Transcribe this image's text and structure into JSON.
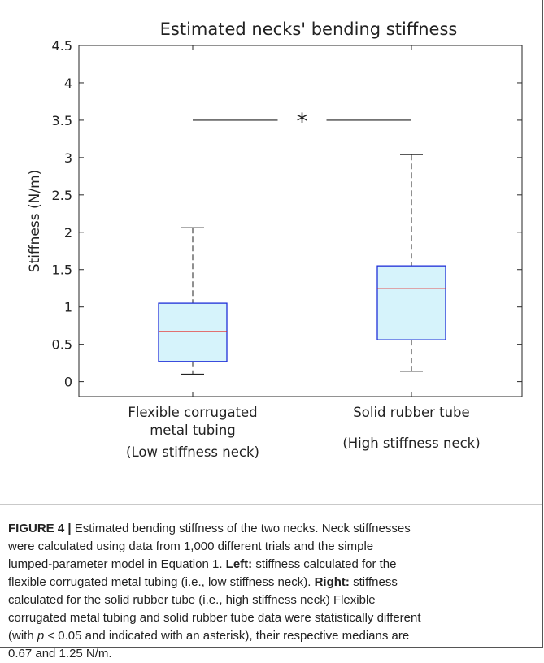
{
  "chart_data": {
    "type": "box",
    "title": "Estimated necks' bending stiffness",
    "ylabel": "Stiffness (N/m)",
    "xlabel": "",
    "ylim": [
      -0.2,
      4.5
    ],
    "yticks": [
      "0",
      "0.5",
      "1",
      "1.5",
      "2",
      "2.5",
      "3",
      "3.5",
      "4",
      "4.5"
    ],
    "ytick_values": [
      0,
      0.5,
      1,
      1.5,
      2,
      2.5,
      3,
      3.5,
      4,
      4.5
    ],
    "grid": false,
    "box_fill_color": "#d6f3fb",
    "box_edge_color": "#1f2fd8",
    "median_color": "#e8211c",
    "groups": [
      {
        "label_lines": [
          "Flexible corrugated",
          "metal tubing",
          "(Low stiffness neck)"
        ],
        "whisker_low": 0.1,
        "q1": 0.27,
        "median": 0.67,
        "q3": 1.05,
        "whisker_high": 2.06
      },
      {
        "label_lines": [
          "Solid rubber tube",
          "(High stiffness neck)"
        ],
        "whisker_low": 0.14,
        "q1": 0.56,
        "median": 1.25,
        "q3": 1.55,
        "whisker_high": 3.04
      }
    ],
    "significance": {
      "y": 3.5,
      "marker": "*"
    }
  },
  "caption": {
    "lines": [
      [
        {
          "b": "FIGURE 4 |"
        },
        {
          "t": " Estimated bending stiffness of the two necks. Neck stiffnesses"
        }
      ],
      [
        {
          "t": "were calculated using data from 1,000 different trials and the simple"
        }
      ],
      [
        {
          "t": "lumped-parameter model in Equation 1. "
        },
        {
          "b": "Left:"
        },
        {
          "t": " stiffness calculated for the"
        }
      ],
      [
        {
          "t": "flexible corrugated metal tubing (i.e., low stiffness neck). "
        },
        {
          "b": "Right:"
        },
        {
          "t": " stiffness"
        }
      ],
      [
        {
          "t": "calculated for the solid rubber tube (i.e., high stiffness neck) Flexible"
        }
      ],
      [
        {
          "t": "corrugated metal tubing and solid rubber tube data were statistically different"
        }
      ],
      [
        {
          "t": "(with "
        },
        {
          "i": "p"
        },
        {
          "t": " < 0.05 and indicated with an asterisk), their respective medians are"
        }
      ],
      [
        {
          "t": "0.67 and 1.25 N/m."
        }
      ]
    ]
  }
}
